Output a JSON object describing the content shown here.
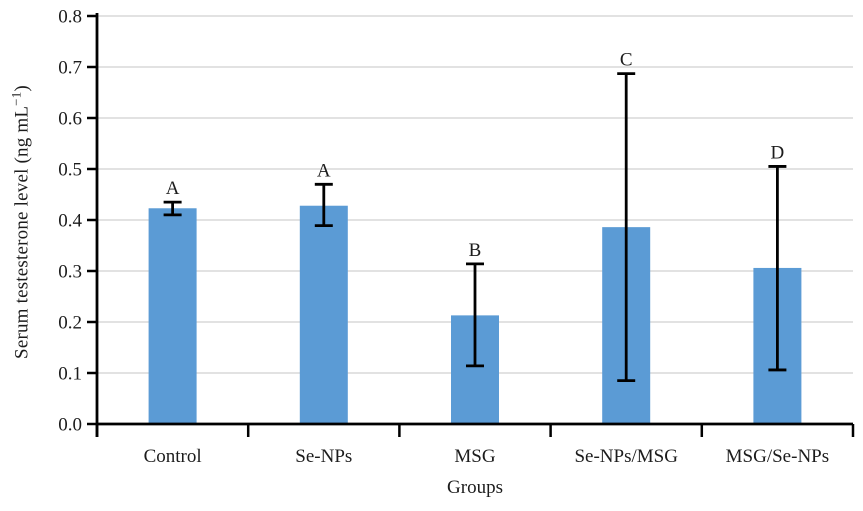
{
  "figure": {
    "background": "#ffffff",
    "colors": {
      "bar": "#5B9BD5",
      "grid": "#d9d9d9",
      "axis": "#000000",
      "error_bar": "#000000",
      "text": "#1c1c1c"
    }
  },
  "chart_data": {
    "type": "bar",
    "title": "",
    "xlabel": "Groups",
    "ylabel": {
      "main": "Serum testesterone level (ng mL",
      "sup": "−1",
      "end": ")"
    },
    "categories": [
      "Control",
      "Se-NPs",
      "MSG",
      "Se-NPs/MSG",
      "MSG/Se-NPs"
    ],
    "values": [
      0.423,
      0.428,
      0.213,
      0.386,
      0.306
    ],
    "error_low": [
      0.41,
      0.389,
      0.114,
      0.085,
      0.106
    ],
    "error_high": [
      0.435,
      0.47,
      0.314,
      0.687,
      0.505
    ],
    "significance_letters": [
      "A",
      "A",
      "B",
      "C",
      "D"
    ],
    "ylim": [
      0.0,
      0.8
    ],
    "yticks": [
      0.0,
      0.1,
      0.2,
      0.3,
      0.4,
      0.5,
      0.6,
      0.7,
      0.8
    ],
    "ytick_labels": [
      "0.0",
      "0.1",
      "0.2",
      "0.3",
      "0.4",
      "0.5",
      "0.6",
      "0.7",
      "0.8"
    ],
    "grid": true,
    "legend": false
  }
}
